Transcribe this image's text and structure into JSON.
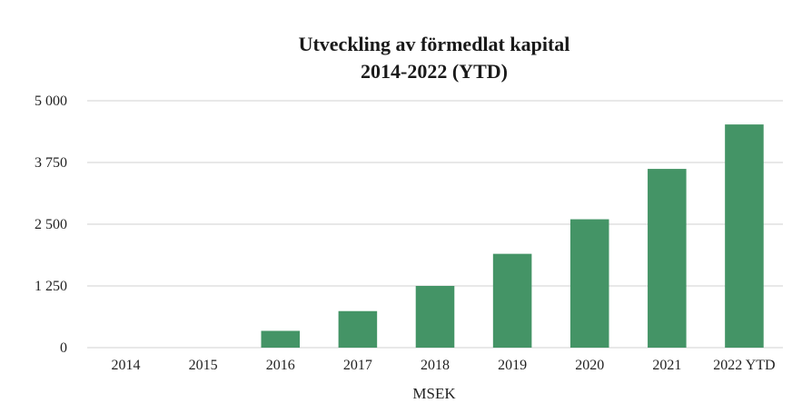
{
  "chart_data": {
    "type": "bar",
    "title": [
      "Utveckling av förmedlat kapital",
      "2014-2022 (YTD)"
    ],
    "xlabel": "MSEK",
    "ylabel": "",
    "categories": [
      "2014",
      "2015",
      "2016",
      "2017",
      "2018",
      "2019",
      "2020",
      "2021",
      "2022 YTD"
    ],
    "series": [
      {
        "values": [
          0,
          0,
          340,
          740,
          1250,
          1900,
          2600,
          3620,
          4520
        ]
      }
    ],
    "ylim": [
      0,
      5000
    ],
    "yticks": [
      0,
      1250,
      2500,
      3750,
      5000
    ],
    "ytick_labels": [
      "0",
      "1 250",
      "2 500",
      "3 750",
      "5 000"
    ],
    "grid": true,
    "legend": "none",
    "colors": {
      "bar": "#449466",
      "grid": "#d9d9d9",
      "text": "#222222"
    }
  }
}
